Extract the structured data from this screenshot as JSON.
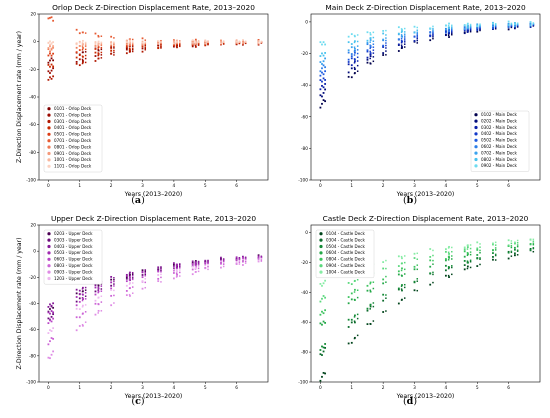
{
  "chart_data": [
    {
      "type": "scatter",
      "title": "Orlop Deck Z-Direction Displacement Rate, 2013–2020",
      "xlabel": "Years (2013–2020)",
      "ylabel": "Z-Direction Displacement rate (mm / year)",
      "xticks": [
        "0",
        "1",
        "2",
        "3",
        "4",
        "5",
        "6"
      ],
      "yticks": [
        "-100",
        "-80",
        "-60",
        "-40",
        "-20",
        "0",
        "20"
      ],
      "xlim": [
        -0.3,
        7.0
      ],
      "ylim": [
        -100,
        20
      ],
      "legend_position": "middle-left",
      "caption_letter": "a",
      "series": [
        {
          "name": "0101 - Orlop Deck",
          "color": "#7f0000",
          "curve": {
            "a": -14,
            "k": 0.55
          }
        },
        {
          "name": "0201 - Orlop Deck",
          "color": "#9b0a00",
          "curve": {
            "a": -22,
            "k": 0.5
          }
        },
        {
          "name": "0301 - Orlop Deck",
          "color": "#b01800",
          "curve": {
            "a": -27,
            "k": 0.5
          }
        },
        {
          "name": "0401 - Orlop Deck",
          "color": "#c82800",
          "curve": {
            "a": -18,
            "k": 0.5
          }
        },
        {
          "name": "0501 - Orlop Deck",
          "color": "#dc3c14",
          "curve": {
            "a": -10,
            "k": 0.5
          }
        },
        {
          "name": "0701 - Orlop Deck",
          "color": "#e65a32",
          "curve": {
            "a": 18,
            "k": 0.9
          }
        },
        {
          "name": "0801 - Orlop Deck",
          "color": "#ef7a55",
          "curve": {
            "a": -6,
            "k": 0.5
          }
        },
        {
          "name": "0901 - Orlop Deck",
          "color": "#f4997a",
          "curve": {
            "a": -4,
            "k": 0.45
          }
        },
        {
          "name": "1001 - Orlop Deck",
          "color": "#f8b59c",
          "curve": {
            "a": -2,
            "k": 0.45
          }
        },
        {
          "name": "1101 - Orlop Deck",
          "color": "#fbd0bf",
          "curve": {
            "a": -1,
            "k": 0.45
          }
        }
      ]
    },
    {
      "type": "scatter",
      "title": "Main Deck Z-Direction Displacement Rate, 2013–2020",
      "xlabel": "Years (2013–2020)",
      "ylabel": "",
      "xticks": [
        "0",
        "1",
        "2",
        "3",
        "4",
        "5",
        "6"
      ],
      "yticks": [
        "-100",
        "-80",
        "-60",
        "-40",
        "-20",
        "0"
      ],
      "xlim": [
        -0.3,
        7.0
      ],
      "ylim": [
        -100,
        5
      ],
      "legend_position": "lower-right",
      "caption_letter": "b",
      "series": [
        {
          "name": "0102 - Main Deck",
          "color": "#00004d",
          "curve": {
            "a": -53,
            "k": 0.45
          }
        },
        {
          "name": "0202 - Main Deck",
          "color": "#000b7a",
          "curve": {
            "a": -47,
            "k": 0.45
          }
        },
        {
          "name": "0302 - Main Deck",
          "color": "#0a1fa8",
          "curve": {
            "a": -42,
            "k": 0.45
          }
        },
        {
          "name": "0402 - Main Deck",
          "color": "#1238c8",
          "curve": {
            "a": -38,
            "k": 0.45
          }
        },
        {
          "name": "0502 - Main Deck",
          "color": "#1e5ae0",
          "curve": {
            "a": -34,
            "k": 0.45
          }
        },
        {
          "name": "0602 - Main Deck",
          "color": "#2c7ee8",
          "curve": {
            "a": -30,
            "k": 0.45
          }
        },
        {
          "name": "0702 - Main Deck",
          "color": "#3aa2ee",
          "curve": {
            "a": -26,
            "k": 0.45
          }
        },
        {
          "name": "0802 - Main Deck",
          "color": "#48c2ee",
          "curve": {
            "a": -21,
            "k": 0.45
          }
        },
        {
          "name": "0902 - Main Deck",
          "color": "#6edcf0",
          "curve": {
            "a": -14,
            "k": 0.45
          }
        }
      ]
    },
    {
      "type": "scatter",
      "title": "Upper Deck Z-Direction Displacement Rate, 2013–2020",
      "xlabel": "Years (2013–2020)",
      "ylabel": "Z-Direction Displacement rate (mm / year)",
      "xticks": [
        "0",
        "1",
        "2",
        "3",
        "4",
        "5",
        "6"
      ],
      "yticks": [
        "-100",
        "-80",
        "-60",
        "-40",
        "-20",
        "0",
        "20"
      ],
      "xlim": [
        -0.3,
        7.0
      ],
      "ylim": [
        -100,
        20
      ],
      "legend_position": "top-left",
      "caption_letter": "c",
      "series": [
        {
          "name": "0203 - Upper Deck",
          "color": "#4a0052",
          "curve": {
            "a": -45,
            "k": 0.35
          }
        },
        {
          "name": "0303 - Upper Deck",
          "color": "#6a0a7a",
          "curve": {
            "a": -52,
            "k": 0.35
          }
        },
        {
          "name": "0403 - Upper Deck",
          "color": "#861a98",
          "curve": {
            "a": -42,
            "k": 0.35
          }
        },
        {
          "name": "0503 - Upper Deck",
          "color": "#a02ab0",
          "curve": {
            "a": -48,
            "k": 0.35
          }
        },
        {
          "name": "0603 - Upper Deck",
          "color": "#b844c6",
          "curve": {
            "a": -55,
            "k": 0.35
          }
        },
        {
          "name": "0803 - Upper Deck",
          "color": "#cc64d6",
          "curve": {
            "a": -70,
            "k": 0.35
          }
        },
        {
          "name": "0903 - Upper Deck",
          "color": "#de8ae4",
          "curve": {
            "a": -82,
            "k": 0.35
          }
        },
        {
          "name": "1203 - Upper Deck",
          "color": "#eeb6f0",
          "curve": {
            "a": -62,
            "k": 0.35
          }
        }
      ]
    },
    {
      "type": "scatter",
      "title": "Castle Deck Z-Direction Displacement Rate, 2013–2020",
      "xlabel": "Years (2013–2020)",
      "ylabel": "",
      "xticks": [
        "0",
        "1",
        "2",
        "3",
        "4",
        "5",
        "6"
      ],
      "yticks": [
        "-100",
        "-80",
        "-60",
        "-40",
        "-20",
        "0"
      ],
      "xlim": [
        -0.3,
        7.0
      ],
      "ylim": [
        -100,
        5
      ],
      "legend_position": "top-left",
      "caption_letter": "d",
      "series": [
        {
          "name": "0104 - Castle Deck",
          "color": "#00441b",
          "curve": {
            "a": -98,
            "k": 0.3
          }
        },
        {
          "name": "0304 - Castle Deck",
          "color": "#0a6a2a",
          "curve": {
            "a": -82,
            "k": 0.3
          }
        },
        {
          "name": "0504 - Castle Deck",
          "color": "#138a36",
          "curve": {
            "a": -78,
            "k": 0.3
          }
        },
        {
          "name": "0604 - Castle Deck",
          "color": "#24a848",
          "curve": {
            "a": -62,
            "k": 0.3
          }
        },
        {
          "name": "0804 - Castle Deck",
          "color": "#3cc45e",
          "curve": {
            "a": -55,
            "k": 0.3
          }
        },
        {
          "name": "0904 - Castle Deck",
          "color": "#5ad87c",
          "curve": {
            "a": -45,
            "k": 0.3
          }
        },
        {
          "name": "1004 - Castle Deck",
          "color": "#86eca4",
          "curve": {
            "a": -35,
            "k": 0.3
          }
        }
      ]
    }
  ]
}
